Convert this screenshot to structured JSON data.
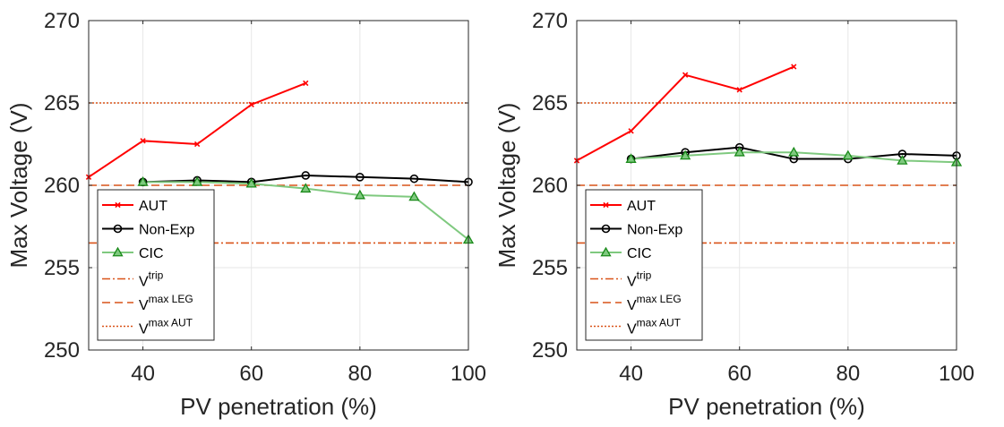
{
  "chart_data": [
    {
      "type": "line",
      "title": "",
      "xlabel": "PV penetration (%)",
      "ylabel": "Max Voltage (V)",
      "xlim": [
        30,
        100
      ],
      "ylim": [
        250,
        270
      ],
      "xticks": [
        40,
        60,
        80,
        100
      ],
      "yticks": [
        250,
        255,
        260,
        265,
        270
      ],
      "grid": true,
      "legend_position": "lower-left",
      "series": [
        {
          "name": "AUT",
          "marker": "x",
          "color": "#ff0000",
          "x": [
            30,
            40,
            50,
            60,
            70
          ],
          "y": [
            260.5,
            262.7,
            262.5,
            264.9,
            266.2
          ]
        },
        {
          "name": "Non-Exp",
          "marker": "circle",
          "color": "#000000",
          "x": [
            40,
            50,
            60,
            70,
            80,
            90,
            100
          ],
          "y": [
            260.2,
            260.3,
            260.2,
            260.6,
            260.5,
            260.4,
            260.2
          ]
        },
        {
          "name": "CIC",
          "marker": "triangle",
          "color": "#7fc97f",
          "x": [
            40,
            50,
            60,
            70,
            80,
            90,
            100
          ],
          "y": [
            260.2,
            260.2,
            260.1,
            259.8,
            259.4,
            259.3,
            256.7
          ]
        }
      ],
      "reference_lines": [
        {
          "name": "V",
          "sup": "trip",
          "y": 256.5,
          "style": "dashdot",
          "color": "#d95319"
        },
        {
          "name": "V",
          "sup": "max LEG",
          "y": 260.0,
          "style": "dashed",
          "color": "#d95319"
        },
        {
          "name": "V",
          "sup": "max AUT",
          "y": 265.0,
          "style": "dotted",
          "color": "#d95319"
        }
      ]
    },
    {
      "type": "line",
      "title": "",
      "xlabel": "PV penetration (%)",
      "ylabel": "Max Voltage (V)",
      "xlim": [
        30,
        100
      ],
      "ylim": [
        250,
        270
      ],
      "xticks": [
        40,
        60,
        80,
        100
      ],
      "yticks": [
        250,
        255,
        260,
        265,
        270
      ],
      "grid": true,
      "legend_position": "lower-left",
      "series": [
        {
          "name": "AUT",
          "marker": "x",
          "color": "#ff0000",
          "x": [
            30,
            40,
            50,
            60,
            70
          ],
          "y": [
            261.5,
            263.3,
            266.7,
            265.8,
            267.2
          ]
        },
        {
          "name": "Non-Exp",
          "marker": "circle",
          "color": "#000000",
          "x": [
            40,
            50,
            60,
            70,
            80,
            90,
            100
          ],
          "y": [
            261.6,
            262.0,
            262.3,
            261.6,
            261.6,
            261.9,
            261.8
          ]
        },
        {
          "name": "CIC",
          "marker": "triangle",
          "color": "#7fc97f",
          "x": [
            40,
            50,
            60,
            70,
            80,
            90,
            100
          ],
          "y": [
            261.6,
            261.8,
            262.0,
            262.0,
            261.8,
            261.5,
            261.4
          ]
        }
      ],
      "reference_lines": [
        {
          "name": "V",
          "sup": "trip",
          "y": 256.5,
          "style": "dashdot",
          "color": "#d95319"
        },
        {
          "name": "V",
          "sup": "max LEG",
          "y": 260.0,
          "style": "dashed",
          "color": "#d95319"
        },
        {
          "name": "V",
          "sup": "max AUT",
          "y": 265.0,
          "style": "dotted",
          "color": "#d95319"
        }
      ]
    }
  ]
}
